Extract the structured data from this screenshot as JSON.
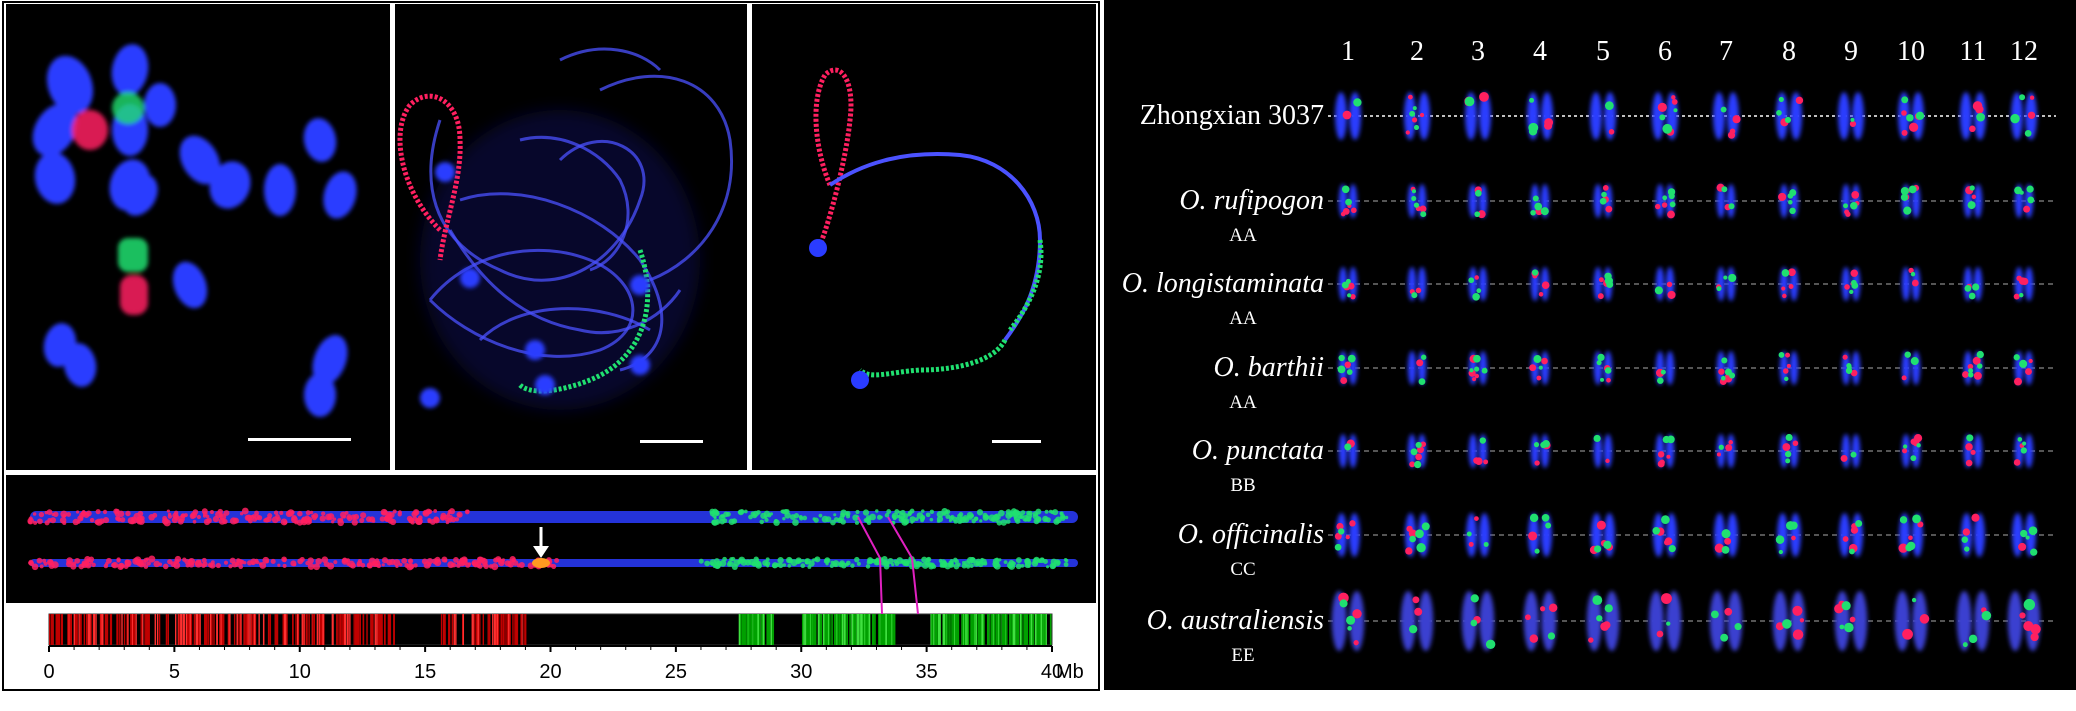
{
  "left_figure": {
    "panels": [
      {
        "id": "metaphase-spread",
        "scale_bar": true
      },
      {
        "id": "pachytene-spread",
        "scale_bar": true
      },
      {
        "id": "pachytene-chromosome",
        "scale_bar": true
      }
    ],
    "straightened_chromosomes": 2,
    "arrow": "arrow-icon",
    "genome_map": {
      "unit": "Mb",
      "ticks": [
        "0",
        "5",
        "10",
        "15",
        "20",
        "25",
        "30",
        "35",
        "40"
      ],
      "unit_label": "40 Mb",
      "range": [
        0,
        40
      ],
      "red_region_mb": [
        0,
        19
      ],
      "green_region_mb": [
        27.5,
        40
      ]
    }
  },
  "karyotype": {
    "chromosome_numbers": [
      "1",
      "2",
      "3",
      "4",
      "5",
      "6",
      "7",
      "8",
      "9",
      "10",
      "11",
      "12"
    ],
    "rows": [
      {
        "name": "Zhongxian 3037",
        "genome": "",
        "italic": false
      },
      {
        "name": "O. rufipogon",
        "genome": "AA",
        "italic": true
      },
      {
        "name": "O. longistaminata",
        "genome": "AA",
        "italic": true
      },
      {
        "name": "O. barthii",
        "genome": "AA",
        "italic": true
      },
      {
        "name": "O. punctata",
        "genome": "BB",
        "italic": true
      },
      {
        "name": "O. officinalis",
        "genome": "CC",
        "italic": true
      },
      {
        "name": "O. australiensis",
        "genome": "EE",
        "italic": true
      }
    ],
    "colors": {
      "dapi": "#2a3cff",
      "red_probe": "#ff2060",
      "green_probe": "#20e070",
      "background": "#000000"
    }
  }
}
